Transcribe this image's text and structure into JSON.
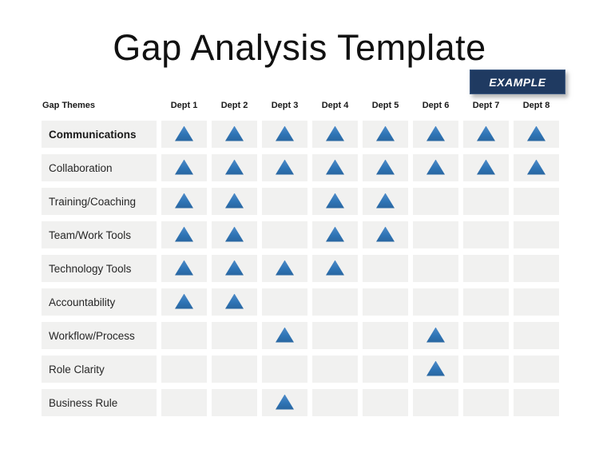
{
  "title": "Gap Analysis Template",
  "badge": {
    "label": "EXAMPLE"
  },
  "table": {
    "corner_header": "Gap Themes",
    "columns": [
      "Dept 1",
      "Dept 2",
      "Dept 3",
      "Dept 4",
      "Dept 5",
      "Dept 6",
      "Dept 7",
      "Dept 8"
    ],
    "rows": [
      {
        "label": "Communications",
        "bold": true,
        "marks": [
          1,
          1,
          1,
          1,
          1,
          1,
          1,
          1
        ]
      },
      {
        "label": "Collaboration",
        "bold": false,
        "marks": [
          1,
          1,
          1,
          1,
          1,
          1,
          1,
          1
        ]
      },
      {
        "label": "Training/Coaching",
        "bold": false,
        "marks": [
          1,
          1,
          0,
          1,
          1,
          0,
          0,
          0
        ]
      },
      {
        "label": "Team/Work Tools",
        "bold": false,
        "marks": [
          1,
          1,
          0,
          1,
          1,
          0,
          0,
          0
        ]
      },
      {
        "label": "Technology Tools",
        "bold": false,
        "marks": [
          1,
          1,
          1,
          1,
          0,
          0,
          0,
          0
        ]
      },
      {
        "label": "Accountability",
        "bold": false,
        "marks": [
          1,
          1,
          0,
          0,
          0,
          0,
          0,
          0
        ]
      },
      {
        "label": "Workflow/Process",
        "bold": false,
        "marks": [
          0,
          0,
          1,
          0,
          0,
          1,
          0,
          0
        ]
      },
      {
        "label": "Role Clarity",
        "bold": false,
        "marks": [
          0,
          0,
          0,
          0,
          0,
          1,
          0,
          0
        ]
      },
      {
        "label": "Business Rule",
        "bold": false,
        "marks": [
          0,
          0,
          1,
          0,
          0,
          0,
          0,
          0
        ]
      }
    ],
    "marker_icon": "gap-triangle-icon"
  },
  "colors": {
    "marker": "#2e74b5",
    "badge_bg": "#1f3a61",
    "cell_bg": "#f1f1f0",
    "title_text": "#111111"
  }
}
